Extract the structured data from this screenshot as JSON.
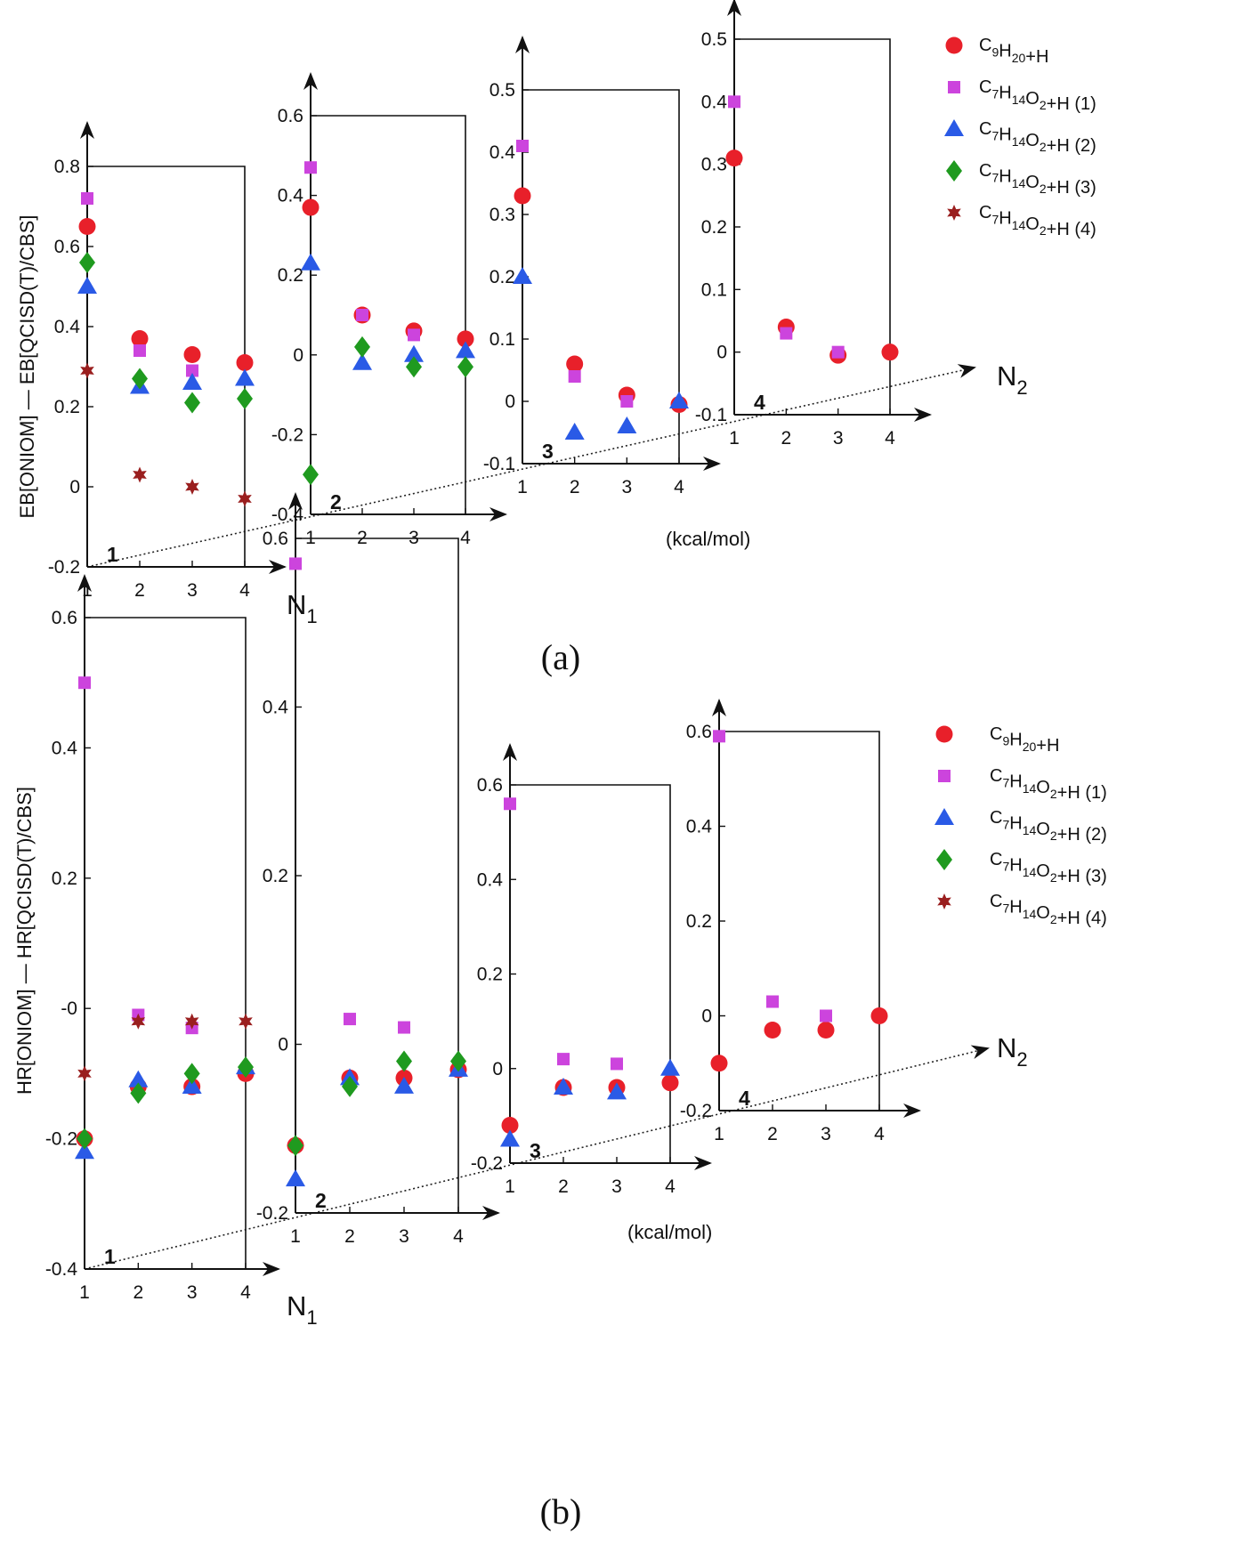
{
  "colors": {
    "C9H20+H": "#e8202a",
    "C7H14O2+H (1)": "#cc44dd",
    "C7H14O2+H (2)": "#2a5ae6",
    "C7H14O2+H (3)": "#1f9a1f",
    "C7H14O2+H (4)": "#9a1f1f"
  },
  "markers": {
    "C9H20+H": "circle",
    "C7H14O2+H (1)": "square",
    "C7H14O2+H (2)": "triangle",
    "C7H14O2+H (3)": "diamond",
    "C7H14O2+H (4)": "star"
  },
  "chart_data": [
    {
      "type": "scatter",
      "panel_label": "(a)",
      "ylabel": "EB[ONIOM] — EB[QCISD(T)/CBS]",
      "n1_label": "N",
      "n1_sub": "1",
      "n2_label": "N",
      "n2_sub": "2",
      "unit_label": "(kcal/mol)",
      "legend": [
        {
          "key": "C9H20+H",
          "parts": [
            [
              "C",
              ""
            ],
            [
              "9",
              "s"
            ],
            [
              "H",
              ""
            ],
            [
              "20",
              "s"
            ],
            [
              "+H",
              ""
            ]
          ]
        },
        {
          "key": "C7H14O2+H (1)",
          "parts": [
            [
              "C",
              ""
            ],
            [
              "7",
              "s"
            ],
            [
              "H",
              ""
            ],
            [
              "14",
              "s"
            ],
            [
              "O",
              ""
            ],
            [
              "2",
              "s"
            ],
            [
              "+H (1)",
              ""
            ]
          ]
        },
        {
          "key": "C7H14O2+H (2)",
          "parts": [
            [
              "C",
              ""
            ],
            [
              "7",
              "s"
            ],
            [
              "H",
              ""
            ],
            [
              "14",
              "s"
            ],
            [
              "O",
              ""
            ],
            [
              "2",
              "s"
            ],
            [
              "+H (2)",
              ""
            ]
          ]
        },
        {
          "key": "C7H14O2+H (3)",
          "parts": [
            [
              "C",
              ""
            ],
            [
              "7",
              "s"
            ],
            [
              "H",
              ""
            ],
            [
              "14",
              "s"
            ],
            [
              "O",
              ""
            ],
            [
              "2",
              "s"
            ],
            [
              "+H (3)",
              ""
            ]
          ]
        },
        {
          "key": "C7H14O2+H (4)",
          "parts": [
            [
              "C",
              ""
            ],
            [
              "7",
              "s"
            ],
            [
              "H",
              ""
            ],
            [
              "14",
              "s"
            ],
            [
              "O",
              ""
            ],
            [
              "2",
              "s"
            ],
            [
              "+H (4)",
              ""
            ]
          ]
        }
      ],
      "subplots": [
        {
          "n2": "1",
          "x_ticks": [
            "1",
            "2",
            "3",
            "4"
          ],
          "ylim": [
            -0.2,
            0.8
          ],
          "y_ticks": [
            {
              "v": -0.2,
              "t": "-0.2"
            },
            {
              "v": 0,
              "t": "0"
            },
            {
              "v": 0.2,
              "t": "0.2"
            },
            {
              "v": 0.4,
              "t": "0.4"
            },
            {
              "v": 0.6,
              "t": "0.6"
            },
            {
              "v": 0.8,
              "t": "0.8"
            }
          ],
          "series": [
            {
              "key": "C9H20+H",
              "values": [
                0.65,
                0.37,
                0.33,
                0.31
              ]
            },
            {
              "key": "C7H14O2+H (1)",
              "values": [
                0.72,
                0.34,
                0.29,
                null
              ]
            },
            {
              "key": "C7H14O2+H (2)",
              "values": [
                0.5,
                0.25,
                0.26,
                0.27
              ]
            },
            {
              "key": "C7H14O2+H (3)",
              "values": [
                0.56,
                0.27,
                0.21,
                0.22
              ]
            },
            {
              "key": "C7H14O2+H (4)",
              "values": [
                0.29,
                0.03,
                0.0,
                -0.03
              ]
            }
          ]
        },
        {
          "n2": "2",
          "x_ticks": [
            "1",
            "2",
            "3",
            "4"
          ],
          "ylim": [
            -0.4,
            0.6
          ],
          "y_ticks": [
            {
              "v": -0.4,
              "t": "-0.4"
            },
            {
              "v": -0.2,
              "t": "-0.2"
            },
            {
              "v": 0,
              "t": "0"
            },
            {
              "v": 0.2,
              "t": "0.2"
            },
            {
              "v": 0.4,
              "t": "0.4"
            },
            {
              "v": 0.6,
              "t": "0.6"
            }
          ],
          "series": [
            {
              "key": "C9H20+H",
              "values": [
                0.37,
                0.1,
                0.06,
                0.04
              ]
            },
            {
              "key": "C7H14O2+H (1)",
              "values": [
                0.47,
                0.1,
                0.05,
                null
              ]
            },
            {
              "key": "C7H14O2+H (2)",
              "values": [
                0.23,
                -0.02,
                0.0,
                0.01
              ]
            },
            {
              "key": "C7H14O2+H (3)",
              "values": [
                -0.3,
                0.02,
                -0.03,
                -0.03
              ]
            }
          ]
        },
        {
          "n2": "3",
          "x_ticks": [
            "1",
            "2",
            "3",
            "4"
          ],
          "ylim": [
            -0.1,
            0.5
          ],
          "y_ticks": [
            {
              "v": -0.1,
              "t": "-0.1"
            },
            {
              "v": 0,
              "t": "0"
            },
            {
              "v": 0.1,
              "t": "0.1"
            },
            {
              "v": 0.2,
              "t": "0.2"
            },
            {
              "v": 0.3,
              "t": "0.3"
            },
            {
              "v": 0.4,
              "t": "0.4"
            },
            {
              "v": 0.5,
              "t": "0.5"
            }
          ],
          "series": [
            {
              "key": "C9H20+H",
              "values": [
                0.33,
                0.06,
                0.01,
                -0.005
              ]
            },
            {
              "key": "C7H14O2+H (1)",
              "values": [
                0.41,
                0.04,
                0.0,
                null
              ]
            },
            {
              "key": "C7H14O2+H (2)",
              "values": [
                0.2,
                -0.05,
                -0.04,
                0.0
              ]
            }
          ]
        },
        {
          "n2": "4",
          "x_ticks": [
            "1",
            "2",
            "3",
            "4"
          ],
          "ylim": [
            -0.1,
            0.5
          ],
          "y_ticks": [
            {
              "v": -0.1,
              "t": "-0.1"
            },
            {
              "v": 0,
              "t": "0"
            },
            {
              "v": 0.1,
              "t": "0.1"
            },
            {
              "v": 0.2,
              "t": "0.2"
            },
            {
              "v": 0.3,
              "t": "0.3"
            },
            {
              "v": 0.4,
              "t": "0.4"
            },
            {
              "v": 0.5,
              "t": "0.5"
            }
          ],
          "series": [
            {
              "key": "C9H20+H",
              "values": [
                0.31,
                0.04,
                -0.005,
                0.0
              ]
            },
            {
              "key": "C7H14O2+H (1)",
              "values": [
                0.4,
                0.03,
                0.0,
                null
              ]
            }
          ]
        }
      ]
    },
    {
      "type": "scatter",
      "panel_label": "(b)",
      "ylabel": "HR[ONIOM] — HR[QCISD(T)/CBS]",
      "n1_label": "N",
      "n1_sub": "1",
      "n2_label": "N",
      "n2_sub": "2",
      "unit_label": "(kcal/mol)",
      "legend": [
        {
          "key": "C9H20+H",
          "parts": [
            [
              "C",
              ""
            ],
            [
              "9",
              "s"
            ],
            [
              "H",
              ""
            ],
            [
              "20",
              "s"
            ],
            [
              "+H",
              ""
            ]
          ]
        },
        {
          "key": "C7H14O2+H (1)",
          "parts": [
            [
              "C",
              ""
            ],
            [
              "7",
              "s"
            ],
            [
              "H",
              ""
            ],
            [
              "14",
              "s"
            ],
            [
              "O",
              ""
            ],
            [
              "2",
              "s"
            ],
            [
              "+H (1)",
              ""
            ]
          ]
        },
        {
          "key": "C7H14O2+H (2)",
          "parts": [
            [
              "C",
              ""
            ],
            [
              "7",
              "s"
            ],
            [
              "H",
              ""
            ],
            [
              "14",
              "s"
            ],
            [
              "O",
              ""
            ],
            [
              "2",
              "s"
            ],
            [
              "+H (2)",
              ""
            ]
          ]
        },
        {
          "key": "C7H14O2+H (3)",
          "parts": [
            [
              "C",
              ""
            ],
            [
              "7",
              "s"
            ],
            [
              "H",
              ""
            ],
            [
              "14",
              "s"
            ],
            [
              "O",
              ""
            ],
            [
              "2",
              "s"
            ],
            [
              "+H (3)",
              ""
            ]
          ]
        },
        {
          "key": "C7H14O2+H (4)",
          "parts": [
            [
              "C",
              ""
            ],
            [
              "7",
              "s"
            ],
            [
              "H",
              ""
            ],
            [
              "14",
              "s"
            ],
            [
              "O",
              ""
            ],
            [
              "2",
              "s"
            ],
            [
              "+H (4)",
              ""
            ]
          ]
        }
      ],
      "subplots": [
        {
          "n2": "1",
          "x_ticks": [
            "1",
            "2",
            "3",
            "4"
          ],
          "ylim": [
            -0.4,
            0.6
          ],
          "y_ticks": [
            {
              "v": -0.4,
              "t": "-0.4"
            },
            {
              "v": -0.2,
              "t": "-0.2"
            },
            {
              "v": 0,
              "t": "-0"
            },
            {
              "v": 0.2,
              "t": "0.2"
            },
            {
              "v": 0.4,
              "t": "0.4"
            },
            {
              "v": 0.6,
              "t": "0.6"
            }
          ],
          "series": [
            {
              "key": "C9H20+H",
              "values": [
                -0.2,
                -0.12,
                -0.12,
                -0.1
              ]
            },
            {
              "key": "C7H14O2+H (1)",
              "values": [
                0.5,
                -0.01,
                -0.03,
                null
              ]
            },
            {
              "key": "C7H14O2+H (2)",
              "values": [
                -0.22,
                -0.11,
                -0.12,
                -0.09
              ]
            },
            {
              "key": "C7H14O2+H (3)",
              "values": [
                -0.2,
                -0.13,
                -0.1,
                -0.09
              ]
            },
            {
              "key": "C7H14O2+H (4)",
              "values": [
                -0.1,
                -0.02,
                -0.02,
                -0.02
              ]
            }
          ]
        },
        {
          "n2": "2",
          "x_ticks": [
            "1",
            "2",
            "3",
            "4"
          ],
          "ylim": [
            -0.2,
            0.6
          ],
          "y_ticks": [
            {
              "v": -0.2,
              "t": "-0.2"
            },
            {
              "v": 0,
              "t": "0"
            },
            {
              "v": 0.2,
              "t": "0.2"
            },
            {
              "v": 0.4,
              "t": "0.4"
            },
            {
              "v": 0.6,
              "t": "0.6"
            }
          ],
          "series": [
            {
              "key": "C9H20+H",
              "values": [
                -0.12,
                -0.04,
                -0.04,
                -0.03
              ]
            },
            {
              "key": "C7H14O2+H (1)",
              "values": [
                0.57,
                0.03,
                0.02,
                null
              ]
            },
            {
              "key": "C7H14O2+H (2)",
              "values": [
                -0.16,
                -0.04,
                -0.05,
                -0.03
              ]
            },
            {
              "key": "C7H14O2+H (3)",
              "values": [
                -0.12,
                -0.05,
                -0.02,
                -0.02
              ]
            }
          ]
        },
        {
          "n2": "3",
          "x_ticks": [
            "1",
            "2",
            "3",
            "4"
          ],
          "ylim": [
            -0.2,
            0.6
          ],
          "y_ticks": [
            {
              "v": -0.2,
              "t": "-0.2"
            },
            {
              "v": 0,
              "t": "0"
            },
            {
              "v": 0.2,
              "t": "0.2"
            },
            {
              "v": 0.4,
              "t": "0.4"
            },
            {
              "v": 0.6,
              "t": "0.6"
            }
          ],
          "series": [
            {
              "key": "C9H20+H",
              "values": [
                -0.12,
                -0.04,
                -0.04,
                -0.03
              ]
            },
            {
              "key": "C7H14O2+H (1)",
              "values": [
                0.56,
                0.02,
                0.01,
                null
              ]
            },
            {
              "key": "C7H14O2+H (2)",
              "values": [
                -0.15,
                -0.04,
                -0.05,
                0.0
              ]
            }
          ]
        },
        {
          "n2": "4",
          "x_ticks": [
            "1",
            "2",
            "3",
            "4"
          ],
          "ylim": [
            -0.2,
            0.6
          ],
          "y_ticks": [
            {
              "v": -0.2,
              "t": "-0.2"
            },
            {
              "v": 0,
              "t": "0"
            },
            {
              "v": 0.2,
              "t": "0.2"
            },
            {
              "v": 0.4,
              "t": "0.4"
            },
            {
              "v": 0.6,
              "t": "0.6"
            }
          ],
          "series": [
            {
              "key": "C9H20+H",
              "values": [
                -0.1,
                -0.03,
                -0.03,
                0.0
              ]
            },
            {
              "key": "C7H14O2+H (1)",
              "values": [
                0.59,
                0.03,
                0.0,
                null
              ]
            }
          ]
        }
      ]
    }
  ]
}
